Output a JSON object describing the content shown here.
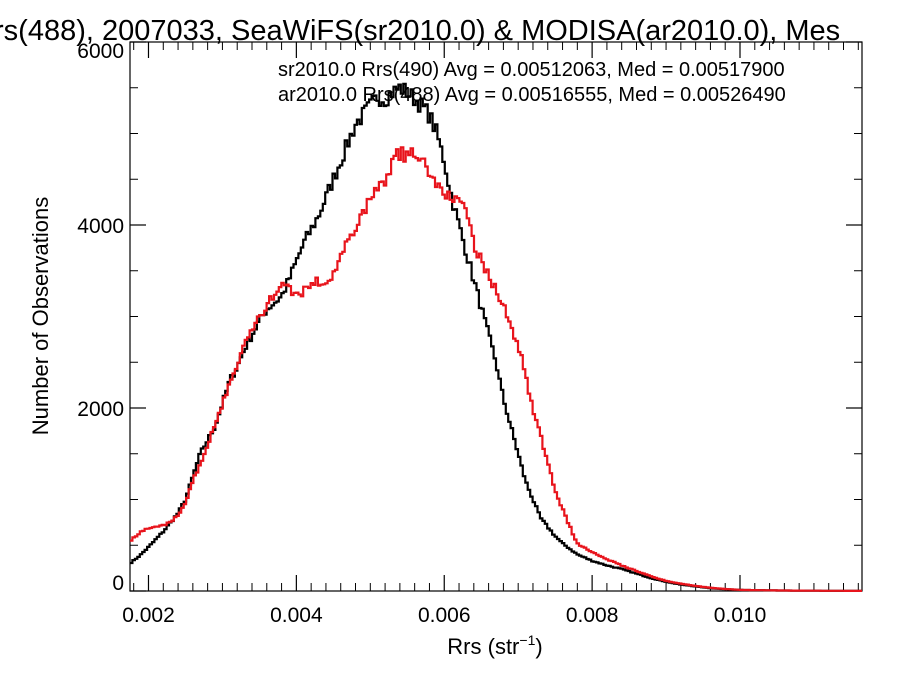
{
  "chart_data": {
    "type": "line",
    "title": "rs(488), 2007033, SeaWiFS(sr2010.0) & MODISA(ar2010.0), Mes",
    "xlabel": "Rrs (str",
    "xlabel_sup": "−1",
    "xlabel_close": ")",
    "ylabel": "Number of Observations",
    "xlim": [
      0.00175,
      0.01165
    ],
    "ylim": [
      0,
      6000
    ],
    "x_ticks": [
      0.002,
      0.004,
      0.006,
      0.008,
      0.01
    ],
    "x_tick_labels": [
      "0.002",
      "0.004",
      "0.006",
      "0.008",
      "0.010"
    ],
    "y_ticks": [
      0,
      2000,
      4000,
      6000
    ],
    "y_tick_labels": [
      "0",
      "2000",
      "4000",
      "6000"
    ],
    "grid": false,
    "legend": [
      {
        "text": "sr2010.0 Rrs(490) Avg = 0.00512063, Med = 0.00517900",
        "color": "#000000"
      },
      {
        "text": "ar2010.0 Rrs(488) Avg = 0.00516555, Med = 0.00526490",
        "color": "#e8141c"
      }
    ],
    "series": [
      {
        "name": "sr2010.0 Rrs(490)",
        "color": "#000000",
        "points": [
          [
            0.00175,
            300
          ],
          [
            0.0019,
            400
          ],
          [
            0.002,
            480
          ],
          [
            0.0022,
            650
          ],
          [
            0.0024,
            850
          ],
          [
            0.0025,
            1000
          ],
          [
            0.0026,
            1250
          ],
          [
            0.0027,
            1500
          ],
          [
            0.0028,
            1650
          ],
          [
            0.0029,
            1800
          ],
          [
            0.003,
            2050
          ],
          [
            0.0031,
            2300
          ],
          [
            0.0032,
            2450
          ],
          [
            0.0033,
            2650
          ],
          [
            0.0034,
            2800
          ],
          [
            0.0035,
            2950
          ],
          [
            0.0036,
            3080
          ],
          [
            0.0037,
            3150
          ],
          [
            0.0038,
            3220
          ],
          [
            0.0039,
            3400
          ],
          [
            0.004,
            3600
          ],
          [
            0.0041,
            3800
          ],
          [
            0.0042,
            3950
          ],
          [
            0.0043,
            4100
          ],
          [
            0.0044,
            4300
          ],
          [
            0.0045,
            4500
          ],
          [
            0.0046,
            4700
          ],
          [
            0.0047,
            4900
          ],
          [
            0.0048,
            5100
          ],
          [
            0.0049,
            5200
          ],
          [
            0.005,
            5300
          ],
          [
            0.0051,
            5400
          ],
          [
            0.0052,
            5380
          ],
          [
            0.0053,
            5450
          ],
          [
            0.0054,
            5500
          ],
          [
            0.0055,
            5450
          ],
          [
            0.0056,
            5380
          ],
          [
            0.0057,
            5300
          ],
          [
            0.0058,
            5200
          ],
          [
            0.0059,
            5000
          ],
          [
            0.006,
            4700
          ],
          [
            0.0061,
            4300
          ],
          [
            0.0062,
            4000
          ],
          [
            0.0063,
            3700
          ],
          [
            0.0064,
            3400
          ],
          [
            0.0065,
            3100
          ],
          [
            0.0066,
            2800
          ],
          [
            0.0067,
            2500
          ],
          [
            0.0068,
            2100
          ],
          [
            0.0069,
            1800
          ],
          [
            0.007,
            1500
          ],
          [
            0.0071,
            1200
          ],
          [
            0.0072,
            1000
          ],
          [
            0.0073,
            800
          ],
          [
            0.0074,
            700
          ],
          [
            0.0075,
            600
          ],
          [
            0.0076,
            520
          ],
          [
            0.0077,
            460
          ],
          [
            0.0078,
            400
          ],
          [
            0.008,
            330
          ],
          [
            0.0082,
            280
          ],
          [
            0.0084,
            240
          ],
          [
            0.0086,
            190
          ],
          [
            0.0088,
            140
          ],
          [
            0.009,
            100
          ],
          [
            0.0092,
            70
          ],
          [
            0.0094,
            50
          ],
          [
            0.0096,
            30
          ],
          [
            0.0098,
            20
          ],
          [
            0.01,
            12
          ],
          [
            0.0105,
            6
          ],
          [
            0.011,
            3
          ],
          [
            0.01165,
            1
          ]
        ]
      },
      {
        "name": "ar2010.0 Rrs(488)",
        "color": "#e8141c",
        "points": [
          [
            0.00175,
            550
          ],
          [
            0.0019,
            650
          ],
          [
            0.002,
            680
          ],
          [
            0.0021,
            700
          ],
          [
            0.0022,
            720
          ],
          [
            0.0023,
            760
          ],
          [
            0.0024,
            830
          ],
          [
            0.0025,
            950
          ],
          [
            0.0026,
            1200
          ],
          [
            0.0027,
            1400
          ],
          [
            0.0028,
            1600
          ],
          [
            0.0029,
            1800
          ],
          [
            0.003,
            2050
          ],
          [
            0.0031,
            2250
          ],
          [
            0.0032,
            2500
          ],
          [
            0.0033,
            2700
          ],
          [
            0.0034,
            2850
          ],
          [
            0.0035,
            3000
          ],
          [
            0.0036,
            3100
          ],
          [
            0.0037,
            3250
          ],
          [
            0.0038,
            3400
          ],
          [
            0.0039,
            3300
          ],
          [
            0.004,
            3200
          ],
          [
            0.0041,
            3300
          ],
          [
            0.0042,
            3350
          ],
          [
            0.0043,
            3400
          ],
          [
            0.0044,
            3350
          ],
          [
            0.0045,
            3450
          ],
          [
            0.0046,
            3650
          ],
          [
            0.0047,
            3800
          ],
          [
            0.0048,
            4000
          ],
          [
            0.0049,
            4100
          ],
          [
            0.005,
            4300
          ],
          [
            0.0051,
            4400
          ],
          [
            0.0052,
            4500
          ],
          [
            0.0053,
            4700
          ],
          [
            0.0054,
            4780
          ],
          [
            0.0055,
            4750
          ],
          [
            0.0056,
            4800
          ],
          [
            0.0057,
            4700
          ],
          [
            0.0058,
            4600
          ],
          [
            0.0059,
            4450
          ],
          [
            0.006,
            4300
          ],
          [
            0.0061,
            4350
          ],
          [
            0.0062,
            4250
          ],
          [
            0.0063,
            4100
          ],
          [
            0.0064,
            3800
          ],
          [
            0.0065,
            3600
          ],
          [
            0.0066,
            3450
          ],
          [
            0.0067,
            3300
          ],
          [
            0.0068,
            3100
          ],
          [
            0.0069,
            2900
          ],
          [
            0.007,
            2700
          ],
          [
            0.0071,
            2350
          ],
          [
            0.0072,
            2000
          ],
          [
            0.0073,
            1700
          ],
          [
            0.0074,
            1400
          ],
          [
            0.0075,
            1100
          ],
          [
            0.0076,
            900
          ],
          [
            0.0077,
            700
          ],
          [
            0.0078,
            520
          ],
          [
            0.008,
            430
          ],
          [
            0.0082,
            350
          ],
          [
            0.0084,
            280
          ],
          [
            0.0086,
            220
          ],
          [
            0.0088,
            160
          ],
          [
            0.009,
            110
          ],
          [
            0.0092,
            80
          ],
          [
            0.0094,
            55
          ],
          [
            0.0096,
            35
          ],
          [
            0.0098,
            22
          ],
          [
            0.01,
            12
          ],
          [
            0.0105,
            6
          ],
          [
            0.011,
            3
          ],
          [
            0.01165,
            1
          ]
        ]
      }
    ]
  }
}
